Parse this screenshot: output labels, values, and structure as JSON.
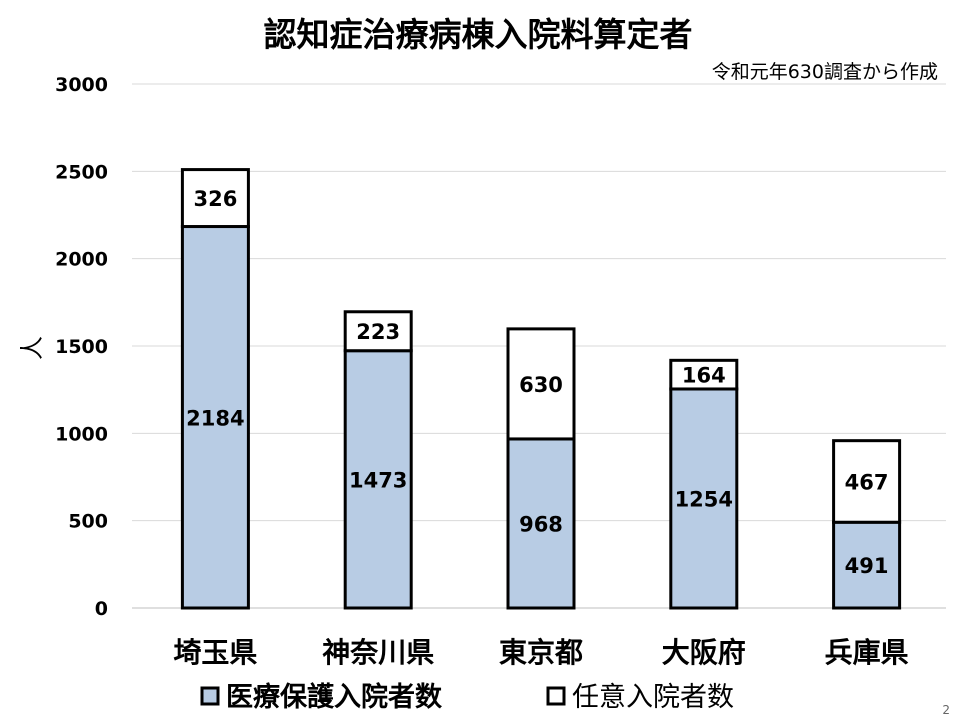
{
  "slide": {
    "page_number": "2"
  },
  "chart_data": {
    "type": "bar",
    "stacked": true,
    "title": "認知症治療病棟入院料算定者",
    "subtitle": "令和元年630調査から作成",
    "xlabel": "",
    "ylabel": "人",
    "ylim": [
      0,
      3000
    ],
    "yticks": [
      0,
      500,
      1000,
      1500,
      2000,
      2500,
      3000
    ],
    "grid": true,
    "legend_position": "bottom",
    "categories": [
      "埼玉県",
      "神奈川県",
      "東京都",
      "大阪府",
      "兵庫県"
    ],
    "series": [
      {
        "name": "医療保護入院者数",
        "values": [
          2184,
          1473,
          968,
          1254,
          491
        ],
        "color": "#b8cce4"
      },
      {
        "name": "任意入院者数",
        "values": [
          326,
          223,
          630,
          164,
          467
        ],
        "color": "#ffffff"
      }
    ]
  }
}
